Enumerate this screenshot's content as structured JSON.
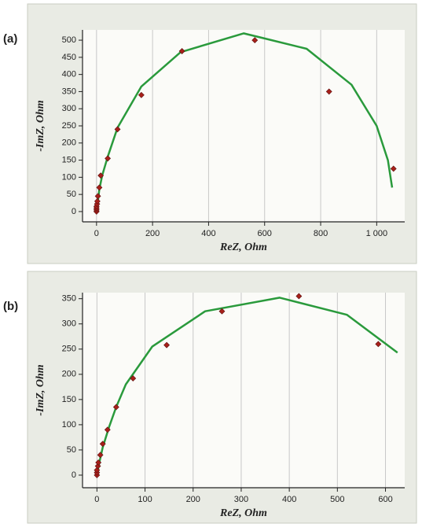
{
  "chart_data": [
    {
      "type": "scatter",
      "label": "(a)",
      "xlabel": "ReZ, Ohm",
      "ylabel": "-ImZ, Ohm",
      "xlim": [
        -50,
        1100
      ],
      "ylim": [
        -30,
        530
      ],
      "xticks": [
        0,
        200,
        400,
        600,
        800,
        {
          "value": 1000,
          "label": "1 000"
        }
      ],
      "yticks": [
        0,
        50,
        100,
        150,
        200,
        250,
        300,
        350,
        400,
        450,
        500
      ],
      "grid": "x",
      "series": [
        {
          "mode": "line",
          "color": "#2a9a3c",
          "x": [
            0,
            5,
            10,
            20,
            40,
            75,
            160,
            300,
            525,
            600,
            750,
            910,
            1000,
            1040,
            1055
          ],
          "values": [
            0,
            30,
            65,
            105,
            160,
            245,
            365,
            465,
            520,
            505,
            475,
            370,
            250,
            150,
            70
          ]
        },
        {
          "mode": "markers",
          "color": "#a8201a",
          "x": [
            0,
            0,
            0,
            0,
            2,
            3,
            5,
            10,
            15,
            40,
            75,
            160,
            305,
            565,
            830,
            1060
          ],
          "values": [
            0,
            5,
            10,
            15,
            22,
            30,
            45,
            70,
            105,
            155,
            240,
            340,
            468,
            500,
            350,
            125
          ]
        }
      ]
    },
    {
      "type": "scatter",
      "label": "(b)",
      "xlabel": "ReZ, Ohm",
      "ylabel": "-ImZ, Ohm",
      "xlim": [
        -30,
        640
      ],
      "ylim": [
        -25,
        362
      ],
      "xticks": [
        0,
        100,
        200,
        300,
        400,
        500,
        600
      ],
      "yticks": [
        0,
        50,
        100,
        150,
        200,
        250,
        300,
        350
      ],
      "grid": "x",
      "series": [
        {
          "mode": "line",
          "color": "#2a9a3c",
          "x": [
            0,
            5,
            12,
            25,
            40,
            60,
            115,
            225,
            380,
            520,
            625
          ],
          "values": [
            0,
            25,
            55,
            95,
            135,
            180,
            255,
            325,
            352,
            318,
            243
          ]
        },
        {
          "mode": "markers",
          "color": "#a8201a",
          "x": [
            0,
            0,
            0,
            2,
            3,
            7,
            12,
            22,
            40,
            75,
            145,
            260,
            420,
            585
          ],
          "values": [
            0,
            5,
            10,
            18,
            25,
            40,
            62,
            90,
            135,
            192,
            258,
            325,
            355,
            260
          ]
        }
      ]
    }
  ]
}
